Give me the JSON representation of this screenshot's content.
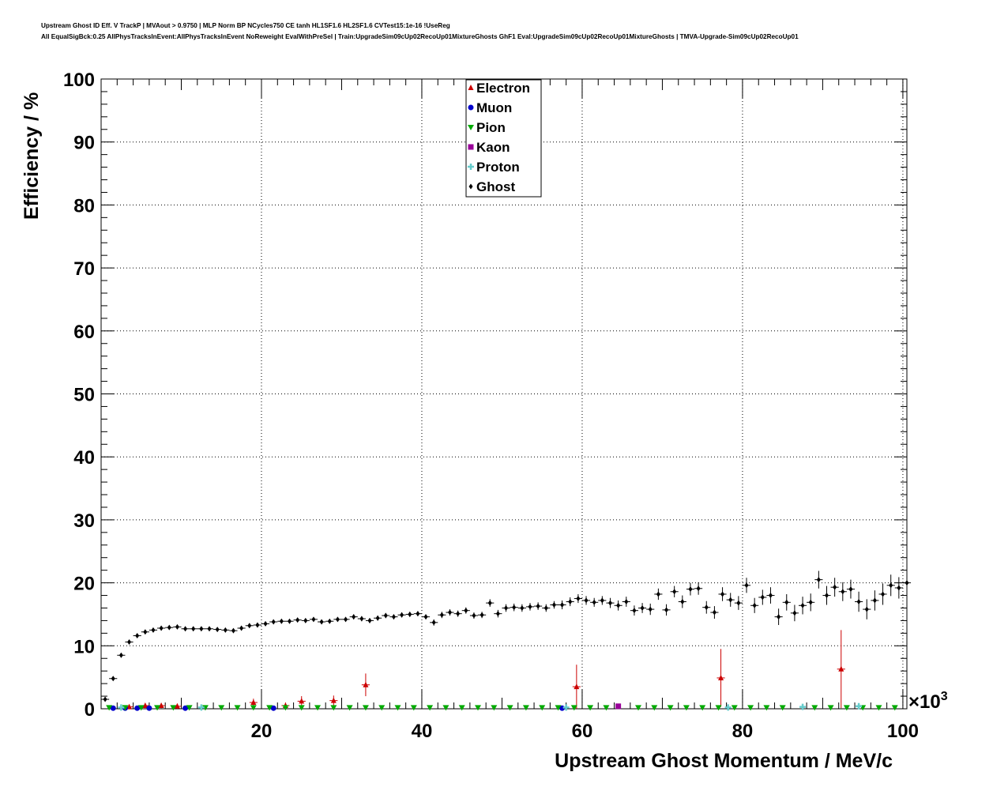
{
  "title_lines": [
    "Upstream Ghost ID Eff. V TrackP | MVAout > 0.9750 | MLP Norm BP NCycles750 CE tanh HL1SF1.6 HL2SF1.6 CVTest15:1e-16 !UseReg",
    "All EqualSigBck:0.25 AllPhysTracksInEvent:AllPhysTracksInEvent NoReweight EvalWithPreSel | Train:UpgradeSim09cUp02RecoUp01MixtureGhosts GhF1 Eval:UpgradeSim09cUp02RecoUp01MixtureGhosts | TMVA-Upgrade-Sim09cUp02RecoUp01"
  ],
  "chart_data": {
    "type": "scatter",
    "title": "",
    "xlabel": "Upstream Ghost Momentum / MeV/c",
    "ylabel": "Efficiency / %",
    "x_exponent_label": "×10",
    "x_exponent_power": "3",
    "xlim": [
      0,
      100.5
    ],
    "ylim": [
      0,
      100
    ],
    "x_ticks": [
      20,
      40,
      60,
      80,
      100
    ],
    "y_ticks": [
      0,
      10,
      20,
      30,
      40,
      50,
      60,
      70,
      80,
      90,
      100
    ],
    "grid": true,
    "legend_position": "top-center",
    "series": [
      {
        "name": "Electron",
        "color": "#cc0000",
        "marker": "triangle-up",
        "points": [
          {
            "x": 3.5,
            "y": 0.3,
            "err": 0.3
          },
          {
            "x": 5.5,
            "y": 0.5,
            "err": 0.4
          },
          {
            "x": 7.5,
            "y": 0.5,
            "err": 0.4
          },
          {
            "x": 9.5,
            "y": 0.4,
            "err": 0.4
          },
          {
            "x": 19.0,
            "y": 1.0,
            "err": 0.6
          },
          {
            "x": 23.0,
            "y": 0.5,
            "err": 0.5
          },
          {
            "x": 25.0,
            "y": 1.2,
            "err": 0.8
          },
          {
            "x": 29.0,
            "y": 1.3,
            "err": 0.8
          },
          {
            "x": 33.0,
            "y": 3.8,
            "err": 1.8
          },
          {
            "x": 59.3,
            "y": 3.5,
            "err": 3.5
          },
          {
            "x": 77.3,
            "y": 4.9,
            "err": 4.6
          },
          {
            "x": 92.3,
            "y": 6.3,
            "err": 6.2
          }
        ]
      },
      {
        "name": "Muon",
        "color": "#0000cc",
        "marker": "circle",
        "points": [
          {
            "x": 1.5,
            "y": 0.1
          },
          {
            "x": 3.0,
            "y": 0.1
          },
          {
            "x": 4.5,
            "y": 0.1
          },
          {
            "x": 6.0,
            "y": 0.1
          },
          {
            "x": 10.5,
            "y": 0.1
          },
          {
            "x": 21.5,
            "y": 0.1
          },
          {
            "x": 57.5,
            "y": 0.1
          }
        ]
      },
      {
        "name": "Pion",
        "color": "#00aa00",
        "marker": "triangle-down",
        "points": [
          {
            "x": 1.0,
            "y": 0.2
          },
          {
            "x": 3.0,
            "y": 0.2
          },
          {
            "x": 5.0,
            "y": 0.2
          },
          {
            "x": 7.0,
            "y": 0.2
          },
          {
            "x": 9.0,
            "y": 0.2
          },
          {
            "x": 11.0,
            "y": 0.2
          },
          {
            "x": 13.0,
            "y": 0.2
          },
          {
            "x": 15.0,
            "y": 0.2
          },
          {
            "x": 17.0,
            "y": 0.2
          },
          {
            "x": 19.0,
            "y": 0.2
          },
          {
            "x": 21.0,
            "y": 0.2
          },
          {
            "x": 23.0,
            "y": 0.2
          },
          {
            "x": 25.0,
            "y": 0.2
          },
          {
            "x": 27.0,
            "y": 0.2
          },
          {
            "x": 29.0,
            "y": 0.2
          },
          {
            "x": 31.0,
            "y": 0.2
          },
          {
            "x": 33.0,
            "y": 0.2
          },
          {
            "x": 35.0,
            "y": 0.2
          },
          {
            "x": 37.0,
            "y": 0.2
          },
          {
            "x": 39.0,
            "y": 0.2
          },
          {
            "x": 41.0,
            "y": 0.2
          },
          {
            "x": 43.0,
            "y": 0.2
          },
          {
            "x": 45.0,
            "y": 0.2
          },
          {
            "x": 47.0,
            "y": 0.2
          },
          {
            "x": 49.0,
            "y": 0.2
          },
          {
            "x": 51.0,
            "y": 0.2
          },
          {
            "x": 53.0,
            "y": 0.2
          },
          {
            "x": 55.0,
            "y": 0.2
          },
          {
            "x": 57.0,
            "y": 0.2
          },
          {
            "x": 59.0,
            "y": 0.2
          },
          {
            "x": 61.0,
            "y": 0.2
          },
          {
            "x": 63.0,
            "y": 0.2
          },
          {
            "x": 67.0,
            "y": 0.2
          },
          {
            "x": 69.0,
            "y": 0.2
          },
          {
            "x": 71.0,
            "y": 0.2
          },
          {
            "x": 73.0,
            "y": 0.2
          },
          {
            "x": 75.0,
            "y": 0.2
          },
          {
            "x": 77.0,
            "y": 0.2
          },
          {
            "x": 79.0,
            "y": 0.2
          },
          {
            "x": 81.0,
            "y": 0.2
          },
          {
            "x": 83.0,
            "y": 0.2
          },
          {
            "x": 85.0,
            "y": 0.2
          },
          {
            "x": 89.0,
            "y": 0.2
          },
          {
            "x": 91.0,
            "y": 0.2
          },
          {
            "x": 93.0,
            "y": 0.2
          },
          {
            "x": 95.0,
            "y": 0.2
          },
          {
            "x": 97.0,
            "y": 0.2
          },
          {
            "x": 99.0,
            "y": 0.2
          }
        ]
      },
      {
        "name": "Kaon",
        "color": "#990099",
        "marker": "square",
        "points": [
          {
            "x": 64.5,
            "y": 0.4
          }
        ]
      },
      {
        "name": "Proton",
        "color": "#66cccc",
        "marker": "plus",
        "points": [
          {
            "x": 2.5,
            "y": 0.2
          },
          {
            "x": 12.5,
            "y": 0.2
          },
          {
            "x": 58.0,
            "y": 0.2
          },
          {
            "x": 78.2,
            "y": 0.2
          },
          {
            "x": 87.5,
            "y": 0.3
          },
          {
            "x": 94.5,
            "y": 0.4
          }
        ]
      },
      {
        "name": "Ghost",
        "color": "#000000",
        "marker": "diamond",
        "points": [
          {
            "x": 0.5,
            "y": 1.5,
            "err": 0.2
          },
          {
            "x": 1.5,
            "y": 4.8,
            "err": 0.2
          },
          {
            "x": 2.5,
            "y": 8.5,
            "err": 0.3
          },
          {
            "x": 3.5,
            "y": 10.6,
            "err": 0.3
          },
          {
            "x": 4.5,
            "y": 11.6,
            "err": 0.3
          },
          {
            "x": 5.5,
            "y": 12.2,
            "err": 0.3
          },
          {
            "x": 6.5,
            "y": 12.5,
            "err": 0.3
          },
          {
            "x": 7.5,
            "y": 12.8,
            "err": 0.3
          },
          {
            "x": 8.5,
            "y": 12.9,
            "err": 0.3
          },
          {
            "x": 9.5,
            "y": 13.0,
            "err": 0.3
          },
          {
            "x": 10.5,
            "y": 12.7,
            "err": 0.3
          },
          {
            "x": 11.5,
            "y": 12.7,
            "err": 0.3
          },
          {
            "x": 12.5,
            "y": 12.7,
            "err": 0.3
          },
          {
            "x": 13.5,
            "y": 12.7,
            "err": 0.3
          },
          {
            "x": 14.5,
            "y": 12.6,
            "err": 0.3
          },
          {
            "x": 15.5,
            "y": 12.5,
            "err": 0.3
          },
          {
            "x": 16.5,
            "y": 12.4,
            "err": 0.3
          },
          {
            "x": 17.5,
            "y": 12.8,
            "err": 0.3
          },
          {
            "x": 18.5,
            "y": 13.2,
            "err": 0.3
          },
          {
            "x": 19.5,
            "y": 13.3,
            "err": 0.3
          },
          {
            "x": 20.5,
            "y": 13.5,
            "err": 0.3
          },
          {
            "x": 21.5,
            "y": 13.8,
            "err": 0.3
          },
          {
            "x": 22.5,
            "y": 13.9,
            "err": 0.3
          },
          {
            "x": 23.5,
            "y": 13.9,
            "err": 0.3
          },
          {
            "x": 24.5,
            "y": 14.1,
            "err": 0.3
          },
          {
            "x": 25.5,
            "y": 14.0,
            "err": 0.3
          },
          {
            "x": 26.5,
            "y": 14.2,
            "err": 0.3
          },
          {
            "x": 27.5,
            "y": 13.8,
            "err": 0.3
          },
          {
            "x": 28.5,
            "y": 13.9,
            "err": 0.3
          },
          {
            "x": 29.5,
            "y": 14.2,
            "err": 0.3
          },
          {
            "x": 30.5,
            "y": 14.2,
            "err": 0.3
          },
          {
            "x": 31.5,
            "y": 14.6,
            "err": 0.4
          },
          {
            "x": 32.5,
            "y": 14.3,
            "err": 0.4
          },
          {
            "x": 33.5,
            "y": 14.0,
            "err": 0.4
          },
          {
            "x": 34.5,
            "y": 14.4,
            "err": 0.4
          },
          {
            "x": 35.5,
            "y": 14.8,
            "err": 0.4
          },
          {
            "x": 36.5,
            "y": 14.6,
            "err": 0.4
          },
          {
            "x": 37.5,
            "y": 14.9,
            "err": 0.4
          },
          {
            "x": 38.5,
            "y": 15.0,
            "err": 0.4
          },
          {
            "x": 39.5,
            "y": 15.1,
            "err": 0.4
          },
          {
            "x": 40.5,
            "y": 14.6,
            "err": 0.4
          },
          {
            "x": 41.5,
            "y": 13.7,
            "err": 0.5
          },
          {
            "x": 42.5,
            "y": 14.9,
            "err": 0.5
          },
          {
            "x": 43.5,
            "y": 15.3,
            "err": 0.5
          },
          {
            "x": 44.5,
            "y": 15.1,
            "err": 0.5
          },
          {
            "x": 45.5,
            "y": 15.6,
            "err": 0.5
          },
          {
            "x": 46.5,
            "y": 14.8,
            "err": 0.5
          },
          {
            "x": 47.5,
            "y": 14.9,
            "err": 0.5
          },
          {
            "x": 48.5,
            "y": 16.8,
            "err": 0.6
          },
          {
            "x": 49.5,
            "y": 15.1,
            "err": 0.6
          },
          {
            "x": 50.5,
            "y": 16.0,
            "err": 0.6
          },
          {
            "x": 51.5,
            "y": 16.1,
            "err": 0.6
          },
          {
            "x": 52.5,
            "y": 16.0,
            "err": 0.6
          },
          {
            "x": 53.5,
            "y": 16.2,
            "err": 0.6
          },
          {
            "x": 54.5,
            "y": 16.3,
            "err": 0.6
          },
          {
            "x": 55.5,
            "y": 16.0,
            "err": 0.6
          },
          {
            "x": 56.5,
            "y": 16.5,
            "err": 0.6
          },
          {
            "x": 57.5,
            "y": 16.5,
            "err": 0.7
          },
          {
            "x": 58.5,
            "y": 17.0,
            "err": 0.7
          },
          {
            "x": 59.5,
            "y": 17.5,
            "err": 0.7
          },
          {
            "x": 60.5,
            "y": 17.2,
            "err": 0.7
          },
          {
            "x": 61.5,
            "y": 16.9,
            "err": 0.7
          },
          {
            "x": 62.5,
            "y": 17.2,
            "err": 0.7
          },
          {
            "x": 63.5,
            "y": 16.8,
            "err": 0.8
          },
          {
            "x": 64.5,
            "y": 16.4,
            "err": 0.8
          },
          {
            "x": 65.5,
            "y": 17.0,
            "err": 0.8
          },
          {
            "x": 66.5,
            "y": 15.6,
            "err": 0.8
          },
          {
            "x": 67.5,
            "y": 16.0,
            "err": 0.8
          },
          {
            "x": 68.5,
            "y": 15.8,
            "err": 0.9
          },
          {
            "x": 69.5,
            "y": 18.2,
            "err": 0.9
          },
          {
            "x": 70.5,
            "y": 15.7,
            "err": 0.9
          },
          {
            "x": 71.5,
            "y": 18.6,
            "err": 0.9
          },
          {
            "x": 72.5,
            "y": 17.0,
            "err": 1.0
          },
          {
            "x": 73.5,
            "y": 19.0,
            "err": 1.0
          },
          {
            "x": 74.5,
            "y": 19.1,
            "err": 1.0
          },
          {
            "x": 75.5,
            "y": 16.1,
            "err": 1.0
          },
          {
            "x": 76.5,
            "y": 15.3,
            "err": 1.0
          },
          {
            "x": 77.5,
            "y": 18.2,
            "err": 1.1
          },
          {
            "x": 78.5,
            "y": 17.3,
            "err": 1.1
          },
          {
            "x": 79.5,
            "y": 16.8,
            "err": 1.1
          },
          {
            "x": 80.5,
            "y": 19.6,
            "err": 1.2
          },
          {
            "x": 81.5,
            "y": 16.4,
            "err": 1.2
          },
          {
            "x": 82.5,
            "y": 17.7,
            "err": 1.2
          },
          {
            "x": 83.5,
            "y": 18.0,
            "err": 1.3
          },
          {
            "x": 84.5,
            "y": 14.6,
            "err": 1.3
          },
          {
            "x": 85.5,
            "y": 16.9,
            "err": 1.3
          },
          {
            "x": 86.5,
            "y": 15.2,
            "err": 1.3
          },
          {
            "x": 87.5,
            "y": 16.4,
            "err": 1.4
          },
          {
            "x": 88.5,
            "y": 16.9,
            "err": 1.4
          },
          {
            "x": 89.5,
            "y": 20.5,
            "err": 1.4
          },
          {
            "x": 90.5,
            "y": 18.0,
            "err": 1.5
          },
          {
            "x": 91.5,
            "y": 19.3,
            "err": 1.5
          },
          {
            "x": 92.5,
            "y": 18.6,
            "err": 1.5
          },
          {
            "x": 93.5,
            "y": 19.0,
            "err": 1.5
          },
          {
            "x": 94.5,
            "y": 17.0,
            "err": 1.6
          },
          {
            "x": 95.5,
            "y": 15.8,
            "err": 1.6
          },
          {
            "x": 96.5,
            "y": 17.2,
            "err": 1.6
          },
          {
            "x": 97.5,
            "y": 18.2,
            "err": 1.7
          },
          {
            "x": 98.5,
            "y": 19.6,
            "err": 1.7
          },
          {
            "x": 99.5,
            "y": 19.2,
            "err": 1.7
          },
          {
            "x": 100.5,
            "y": 20.0,
            "err": 1.8
          }
        ]
      }
    ]
  }
}
